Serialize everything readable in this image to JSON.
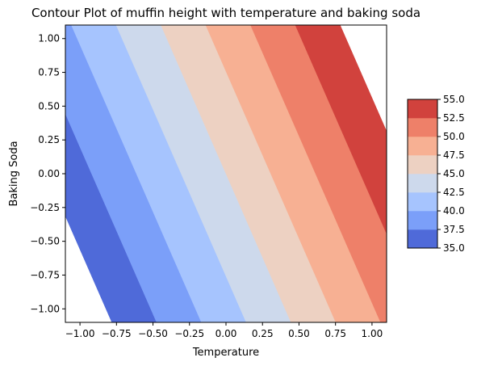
{
  "chart_data": {
    "type": "contour",
    "title": "Contour Plot of muffin height with temperature and baking soda",
    "xlabel": "Temperature",
    "ylabel": "Baking Soda",
    "xlim": [
      -1.1,
      1.1
    ],
    "ylim": [
      -1.1,
      1.1
    ],
    "xticks": [
      -1.0,
      -0.75,
      -0.5,
      -0.25,
      0.0,
      0.25,
      0.5,
      0.75,
      1.0
    ],
    "xtick_labels": [
      "−1.00",
      "−0.75",
      "−0.50",
      "−0.25",
      "0.00",
      "0.25",
      "0.50",
      "0.75",
      "1.00"
    ],
    "yticks": [
      -1.0,
      -0.75,
      -0.5,
      -0.25,
      0.0,
      0.25,
      0.5,
      0.75,
      1.0
    ],
    "ytick_labels": [
      "−1.00",
      "−0.75",
      "−0.50",
      "−0.25",
      "0.00",
      "0.25",
      "0.50",
      "0.75",
      "1.00"
    ],
    "surface": {
      "intercept": 45.0,
      "temperature_coef": 8.15,
      "baking_soda_coef": 3.3
    },
    "levels": [
      35.0,
      37.5,
      40.0,
      42.5,
      45.0,
      47.5,
      50.0,
      52.5,
      55.0
    ],
    "level_labels": [
      "35.0",
      "37.5",
      "40.0",
      "42.5",
      "45.0",
      "47.5",
      "50.0",
      "52.5",
      "55.0"
    ],
    "colors": [
      "#4f6ad9",
      "#7b9ff9",
      "#a6c4fe",
      "#cdd9ec",
      "#edd1c2",
      "#f7b093",
      "#ee8069",
      "#d1423d"
    ],
    "colormap": "coolwarm",
    "grid": false,
    "colorbar_position": "right"
  }
}
